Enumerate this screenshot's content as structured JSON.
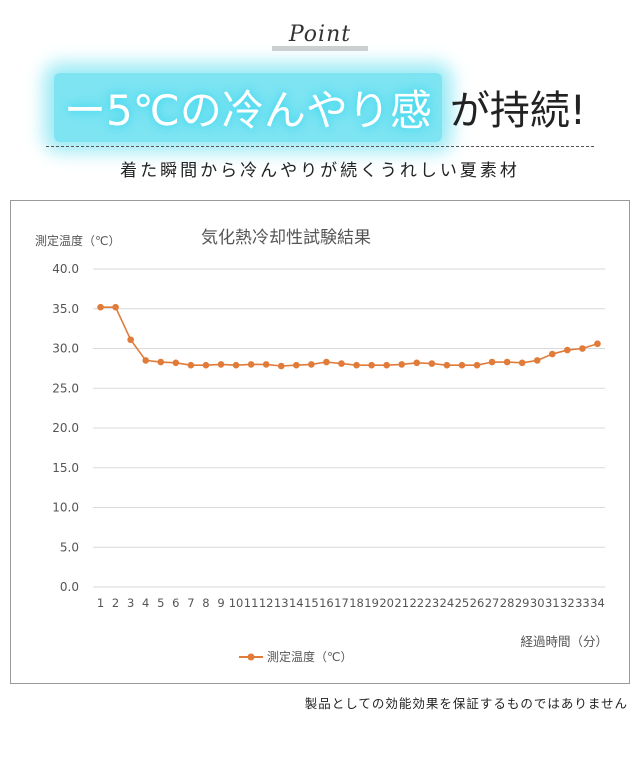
{
  "header": {
    "point_label": "Point",
    "headline_glow": "ー5℃の冷んやり感",
    "headline_rest": "が持続!",
    "subtitle": "着た瞬間から冷んやりが続くうれしい夏素材"
  },
  "footer": {
    "disclaimer": "製品としての効能効果を保証するものではありません"
  },
  "colors": {
    "series": "#e07b39",
    "glow": "#3fd8ef",
    "grid": "#d9d9d9"
  },
  "chart_data": {
    "type": "line",
    "title": "気化熱冷却性試験結果",
    "ylabel": "測定温度（℃）",
    "xlabel": "経過時間（分）",
    "ylim": [
      0,
      40
    ],
    "yticks": [
      "0.0",
      "5.0",
      "10.0",
      "15.0",
      "20.0",
      "25.0",
      "30.0",
      "35.0",
      "40.0"
    ],
    "categories": [
      "1",
      "2",
      "3",
      "4",
      "5",
      "6",
      "7",
      "8",
      "9",
      "10",
      "11",
      "12",
      "13",
      "14",
      "15",
      "16",
      "17",
      "18",
      "19",
      "20",
      "21",
      "22",
      "23",
      "24",
      "25",
      "26",
      "27",
      "28",
      "29",
      "30",
      "31",
      "32",
      "33",
      "34"
    ],
    "legend_position": "bottom",
    "grid": true,
    "series": [
      {
        "name": "測定温度（℃）",
        "values": [
          35.2,
          35.2,
          31.1,
          28.5,
          28.3,
          28.2,
          27.9,
          27.9,
          28.0,
          27.9,
          28.0,
          28.0,
          27.8,
          27.9,
          28.0,
          28.3,
          28.1,
          27.9,
          27.9,
          27.9,
          28.0,
          28.2,
          28.1,
          27.9,
          27.9,
          27.9,
          28.3,
          28.3,
          28.2,
          28.5,
          29.3,
          29.8,
          30.0,
          30.6
        ]
      }
    ]
  }
}
